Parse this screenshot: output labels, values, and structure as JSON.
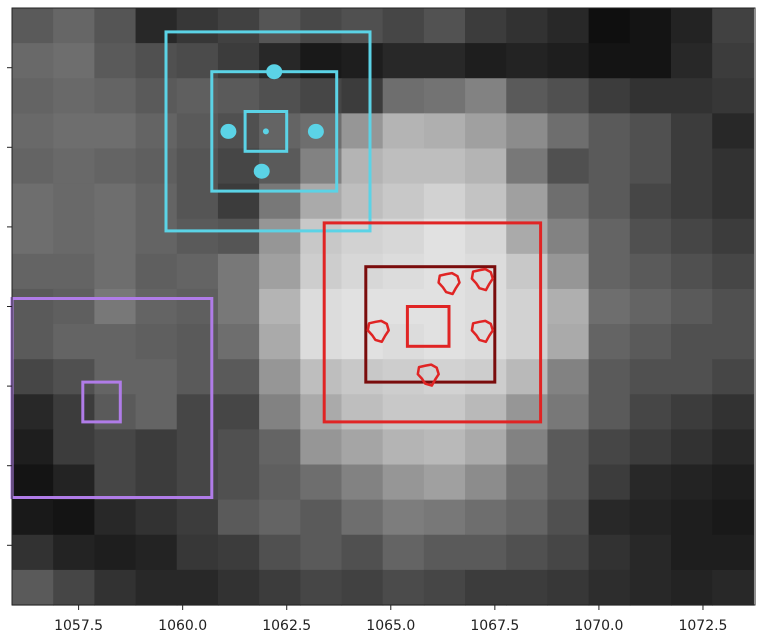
{
  "chart_data": {
    "type": "heatmap",
    "title": "",
    "xlabel": "",
    "ylabel": "",
    "xlim": [
      1055.9,
      1073.75
    ],
    "ylim": [
      0,
      15
    ],
    "x_ticks": [
      1057.5,
      1060.0,
      1062.5,
      1065.0,
      1067.5,
      1070.0,
      1072.5
    ],
    "x_tick_labels": [
      "1057.5",
      "1060.0",
      "1062.5",
      "1065.0",
      "1067.5",
      "1070.0",
      "1072.5"
    ],
    "y_ticks": [
      1.5,
      3.5,
      5.5,
      7.5,
      9.5,
      11.5,
      13.5
    ],
    "grid": false,
    "pixel_grid": {
      "x0": 1055.9,
      "cell_width": 0.9895,
      "rows_top_to_bottom": [
        [
          90,
          102,
          85,
          40,
          55,
          65,
          85,
          72,
          80,
          70,
          82,
          60,
          50,
          40,
          15,
          20,
          35,
          65
        ],
        [
          105,
          110,
          90,
          80,
          75,
          60,
          40,
          25,
          30,
          40,
          40,
          30,
          35,
          30,
          20,
          20,
          40,
          60
        ],
        [
          100,
          105,
          100,
          90,
          95,
          90,
          80,
          70,
          60,
          110,
          115,
          130,
          90,
          80,
          60,
          50,
          50,
          55
        ],
        [
          105,
          110,
          110,
          100,
          90,
          80,
          100,
          110,
          150,
          180,
          175,
          160,
          140,
          110,
          90,
          80,
          60,
          40
        ],
        [
          100,
          105,
          100,
          95,
          85,
          70,
          90,
          130,
          180,
          190,
          190,
          180,
          120,
          80,
          90,
          80,
          60,
          50
        ],
        [
          110,
          105,
          110,
          100,
          85,
          60,
          120,
          170,
          190,
          200,
          210,
          195,
          160,
          110,
          90,
          70,
          60,
          50
        ],
        [
          110,
          105,
          110,
          100,
          90,
          85,
          150,
          200,
          210,
          215,
          225,
          215,
          170,
          130,
          100,
          80,
          70,
          60
        ],
        [
          100,
          100,
          110,
          95,
          100,
          120,
          160,
          205,
          215,
          220,
          225,
          220,
          200,
          150,
          100,
          90,
          80,
          70
        ],
        [
          90,
          95,
          120,
          100,
          95,
          120,
          180,
          220,
          225,
          225,
          225,
          220,
          210,
          175,
          110,
          100,
          90,
          80
        ],
        [
          90,
          100,
          100,
          95,
          90,
          110,
          170,
          220,
          225,
          220,
          225,
          220,
          210,
          170,
          100,
          90,
          80,
          80
        ],
        [
          70,
          80,
          100,
          100,
          90,
          90,
          150,
          190,
          200,
          205,
          210,
          205,
          185,
          130,
          90,
          80,
          80,
          70
        ],
        [
          40,
          60,
          90,
          100,
          70,
          70,
          130,
          170,
          190,
          200,
          200,
          185,
          150,
          120,
          90,
          70,
          60,
          50
        ],
        [
          30,
          60,
          70,
          60,
          70,
          80,
          100,
          150,
          165,
          180,
          185,
          170,
          130,
          90,
          70,
          60,
          50,
          40
        ],
        [
          20,
          35,
          70,
          60,
          70,
          80,
          95,
          110,
          130,
          150,
          160,
          140,
          110,
          90,
          60,
          40,
          35,
          30
        ],
        [
          25,
          20,
          40,
          50,
          60,
          90,
          100,
          90,
          110,
          125,
          120,
          110,
          100,
          80,
          40,
          35,
          30,
          25
        ],
        [
          50,
          35,
          30,
          35,
          55,
          60,
          80,
          90,
          80,
          100,
          90,
          90,
          80,
          70,
          50,
          40,
          30,
          30
        ],
        [
          90,
          70,
          50,
          40,
          40,
          50,
          60,
          70,
          65,
          75,
          70,
          60,
          60,
          55,
          45,
          40,
          35,
          40
        ]
      ]
    },
    "annotations": [
      {
        "name": "cyan-outer-box",
        "shape": "rect",
        "color": "#5bd3e6",
        "x": [
          1059.6,
          1064.5
        ],
        "y": [
          0.6,
          5.6
        ]
      },
      {
        "name": "cyan-middle-box",
        "shape": "rect",
        "color": "#5bd3e6",
        "x": [
          1060.7,
          1063.7
        ],
        "y": [
          1.6,
          4.6
        ]
      },
      {
        "name": "cyan-inner-box",
        "shape": "rect",
        "color": "#5bd3e6",
        "x": [
          1061.5,
          1062.5
        ],
        "y": [
          2.6,
          3.6
        ]
      },
      {
        "name": "cyan-dot-top",
        "shape": "dot",
        "color": "#5bd3e6",
        "x": 1062.2,
        "y": 1.6
      },
      {
        "name": "cyan-dot-left",
        "shape": "dot",
        "color": "#5bd3e6",
        "x": 1061.1,
        "y": 3.1
      },
      {
        "name": "cyan-dot-center",
        "shape": "dot",
        "color": "#5bd3e6",
        "x": 1062.0,
        "y": 3.1
      },
      {
        "name": "cyan-dot-right",
        "shape": "dot",
        "color": "#5bd3e6",
        "x": 1063.2,
        "y": 3.1
      },
      {
        "name": "cyan-dot-bottom",
        "shape": "dot",
        "color": "#5bd3e6",
        "x": 1061.9,
        "y": 4.1
      },
      {
        "name": "red-outer-box",
        "shape": "rect",
        "color": "#e02424",
        "x": [
          1063.4,
          1068.6
        ],
        "y": [
          5.4,
          10.4
        ]
      },
      {
        "name": "darkred-box",
        "shape": "rect",
        "color": "#7a0c0c",
        "x": [
          1064.4,
          1067.5
        ],
        "y": [
          6.5,
          9.4
        ]
      },
      {
        "name": "red-inner-box",
        "shape": "rect",
        "color": "#e02424",
        "x": [
          1065.4,
          1066.4
        ],
        "y": [
          7.5,
          8.5
        ]
      },
      {
        "name": "red-blob-top",
        "shape": "blob",
        "color": "#e02424",
        "x": 1066.4,
        "y": 6.9
      },
      {
        "name": "red-blob-top-right",
        "shape": "blob",
        "color": "#e02424",
        "x": 1067.2,
        "y": 6.8
      },
      {
        "name": "red-blob-left",
        "shape": "blob",
        "color": "#e02424",
        "x": 1064.7,
        "y": 8.1
      },
      {
        "name": "red-blob-right",
        "shape": "blob",
        "color": "#e02424",
        "x": 1067.2,
        "y": 8.1
      },
      {
        "name": "red-blob-bottom",
        "shape": "blob",
        "color": "#e02424",
        "x": 1065.9,
        "y": 9.2
      },
      {
        "name": "purple-outer-box",
        "shape": "rect",
        "color": "#b07ce8",
        "x": [
          1055.9,
          1060.7
        ],
        "y": [
          7.3,
          12.3
        ]
      },
      {
        "name": "purple-inner-box",
        "shape": "rect",
        "color": "#b07ce8",
        "x": [
          1057.6,
          1058.5
        ],
        "y": [
          9.4,
          10.4
        ]
      }
    ]
  }
}
